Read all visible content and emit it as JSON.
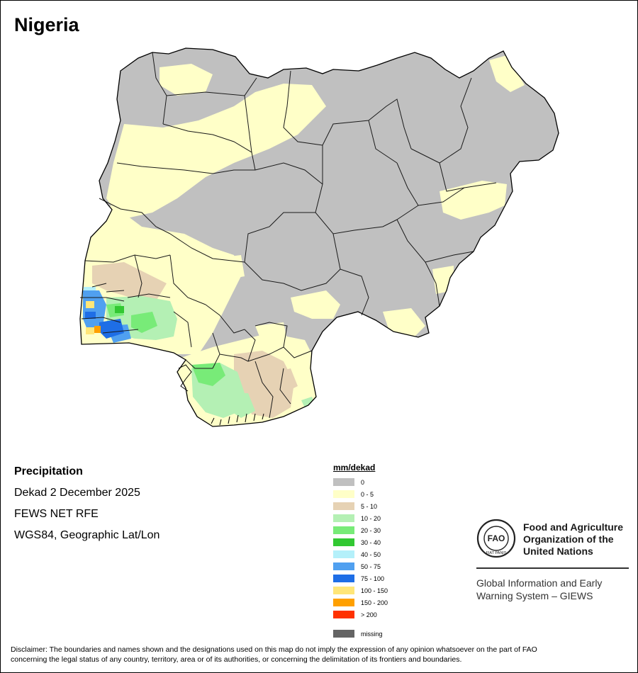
{
  "map": {
    "title": "Nigeria"
  },
  "info": {
    "heading": "Precipitation",
    "period": "Dekad 2 December 2025",
    "source": "FEWS NET RFE",
    "projection": "WGS84, Geographic Lat/Lon"
  },
  "legend": {
    "title": "mm/dekad",
    "items": [
      {
        "label": "0",
        "color": "#c0c0c0"
      },
      {
        "label": "0 - 5",
        "color": "#ffffc8"
      },
      {
        "label": "5 - 10",
        "color": "#e6d2b4"
      },
      {
        "label": "10 - 20",
        "color": "#b4f0b4"
      },
      {
        "label": "20 - 30",
        "color": "#78eb78"
      },
      {
        "label": "30 - 40",
        "color": "#32c832"
      },
      {
        "label": "40 - 50",
        "color": "#b4f0fa"
      },
      {
        "label": "50 - 75",
        "color": "#50a0f0"
      },
      {
        "label": "75 - 100",
        "color": "#1e6ee6"
      },
      {
        "label": "100 - 150",
        "color": "#ffe678"
      },
      {
        "label": "150 - 200",
        "color": "#ffa000"
      },
      {
        "label": "> 200",
        "color": "#ff3200"
      }
    ],
    "missing": {
      "label": "missing",
      "color": "#646464"
    }
  },
  "fao": {
    "line1": "Food and Agriculture",
    "line2": "Organization of the",
    "line3": "United Nations",
    "logo_text": "FAO",
    "motto": "FIAT PANIS",
    "giews1": "Global Information and Early",
    "giews2": "Warning System – GIEWS"
  },
  "disclaimer": {
    "line1": "Disclaimer: The boundaries and names shown and the designations used on this map do not imply the expression of any opinion whatsoever on the part of FAO",
    "line2": "concerning the legal status of any country, territory, area or of its authorities, or concerning the delimitation of its frontiers and boundaries."
  }
}
